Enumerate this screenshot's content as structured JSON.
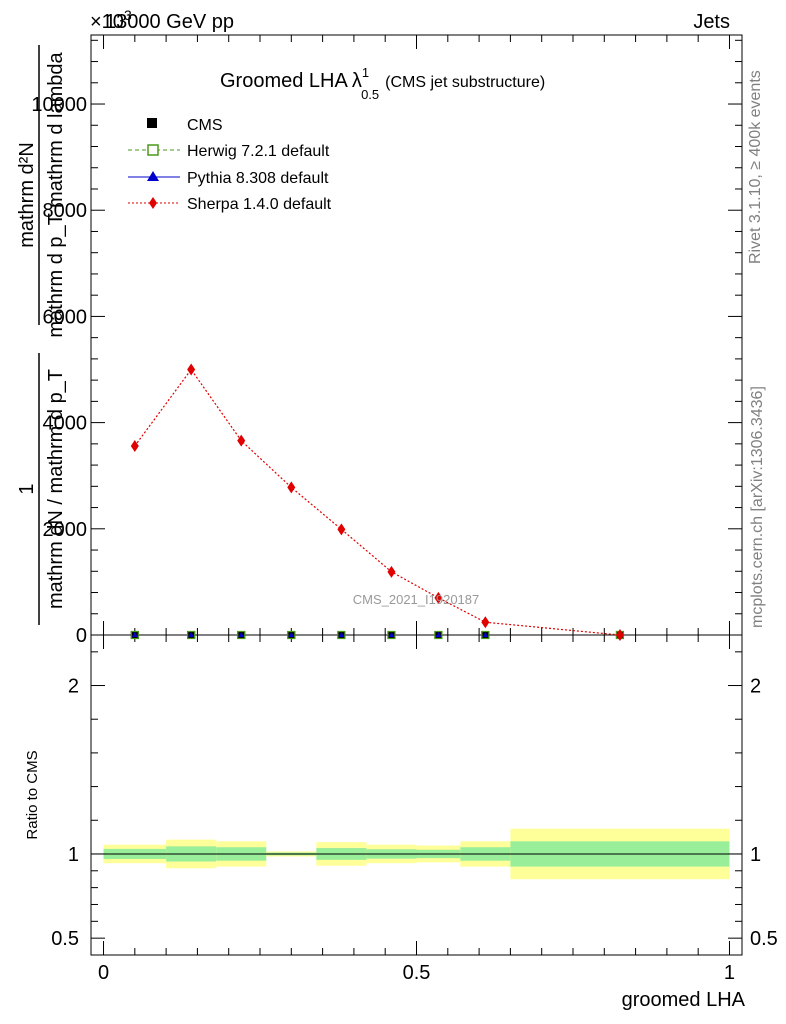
{
  "header": {
    "left_label": "13000 GeV pp",
    "right_label": "Jets",
    "exponent_label": "×10",
    "exponent_power": "3"
  },
  "side_labels": {
    "rivet": "Rivet 3.1.10, ≥ 400k events",
    "mcplots": "mcplots.cern.ch [arXiv:1306.3436]"
  },
  "chart_data": [
    {
      "panel": "main",
      "type": "line",
      "title": "Groomed LHA",
      "title_symbol": "λ",
      "title_superscript": "1",
      "title_subscript": "0.5",
      "subtitle": "(CMS jet substructure)",
      "watermark": "CMS_2021_I1920187",
      "ylabel_fraction_numerator": "1",
      "ylabel_fraction_denominator": "mathrm dN / mathrm d p_T",
      "ylabel_main_numerator": "mathrm d²N",
      "ylabel_main_denominator": "mathrm d p_T mathrm d lambda",
      "ylim": [
        0,
        11300
      ],
      "yticks": [
        0,
        2000,
        4000,
        6000,
        8000,
        10000
      ],
      "ytick_labels": [
        "0",
        "2000",
        "4000",
        "6000",
        "8000",
        "10000"
      ],
      "xlim": [
        -0.02,
        1.02
      ],
      "bin_edges": [
        0,
        0.1,
        0.18,
        0.26,
        0.34,
        0.42,
        0.5,
        0.57,
        0.65,
        1.0
      ],
      "legend": [
        {
          "label": "CMS",
          "marker": "square",
          "color": "#000000"
        },
        {
          "label": "Herwig 7.2.1 default",
          "marker": "open-square",
          "color": "#4a9a1a"
        },
        {
          "label": "Pythia 8.308 default",
          "marker": "triangle",
          "color": "#0000cc"
        },
        {
          "label": "Sherpa 1.4.0 default",
          "marker": "diamond",
          "color": "#e00000"
        }
      ],
      "series": [
        {
          "name": "CMS",
          "x": [
            0.05,
            0.14,
            0.22,
            0.3,
            0.38,
            0.46,
            0.535,
            0.61,
            0.825
          ],
          "values": [
            0,
            0,
            0,
            0,
            0,
            0,
            0,
            0,
            0
          ]
        },
        {
          "name": "Herwig 7.2.1 default",
          "x": [
            0.05,
            0.14,
            0.22,
            0.3,
            0.38,
            0.46,
            0.535,
            0.61,
            0.825
          ],
          "values": [
            0,
            0,
            0,
            0,
            0,
            0,
            0,
            0,
            0
          ]
        },
        {
          "name": "Pythia 8.308 default",
          "x": [
            0.05,
            0.14,
            0.22,
            0.3,
            0.38,
            0.46,
            0.535,
            0.61,
            0.825
          ],
          "values": [
            0,
            0,
            0,
            0,
            0,
            0,
            0,
            0,
            0
          ]
        },
        {
          "name": "Sherpa 1.4.0 default",
          "x": [
            0.05,
            0.14,
            0.22,
            0.3,
            0.38,
            0.46,
            0.535,
            0.61,
            0.825
          ],
          "values": [
            3560,
            5000,
            3660,
            2780,
            1990,
            1190,
            700,
            240,
            0
          ]
        }
      ]
    },
    {
      "panel": "ratio",
      "type": "area",
      "ylabel": "Ratio to CMS",
      "xlabel": "groomed LHA",
      "ylim": [
        0.4,
        2.3
      ],
      "yticks": [
        0.5,
        1,
        2
      ],
      "ytick_labels": [
        "0.5",
        "1",
        "2"
      ],
      "xticks": [
        0,
        0.5,
        1
      ],
      "xtick_labels": [
        "0",
        "0.5",
        "1"
      ],
      "xlim": [
        -0.02,
        1.02
      ],
      "reference_line": 1,
      "bins": [
        {
          "x0": 0.0,
          "x1": 0.1,
          "yellow": [
            0.945,
            1.055
          ],
          "green": [
            0.97,
            1.03
          ]
        },
        {
          "x0": 0.1,
          "x1": 0.18,
          "yellow": [
            0.915,
            1.085
          ],
          "green": [
            0.955,
            1.045
          ]
        },
        {
          "x0": 0.18,
          "x1": 0.26,
          "yellow": [
            0.925,
            1.075
          ],
          "green": [
            0.96,
            1.04
          ]
        },
        {
          "x0": 0.26,
          "x1": 0.34,
          "yellow": [
            0.985,
            1.015
          ],
          "green": [
            0.992,
            1.008
          ]
        },
        {
          "x0": 0.34,
          "x1": 0.42,
          "yellow": [
            0.93,
            1.07
          ],
          "green": [
            0.965,
            1.035
          ]
        },
        {
          "x0": 0.42,
          "x1": 0.5,
          "yellow": [
            0.945,
            1.055
          ],
          "green": [
            0.972,
            1.028
          ]
        },
        {
          "x0": 0.5,
          "x1": 0.57,
          "yellow": [
            0.95,
            1.05
          ],
          "green": [
            0.975,
            1.025
          ]
        },
        {
          "x0": 0.57,
          "x1": 0.65,
          "yellow": [
            0.925,
            1.075
          ],
          "green": [
            0.96,
            1.04
          ]
        },
        {
          "x0": 0.65,
          "x1": 1.0,
          "yellow": [
            0.85,
            1.15
          ],
          "green": [
            0.925,
            1.075
          ]
        }
      ]
    }
  ]
}
